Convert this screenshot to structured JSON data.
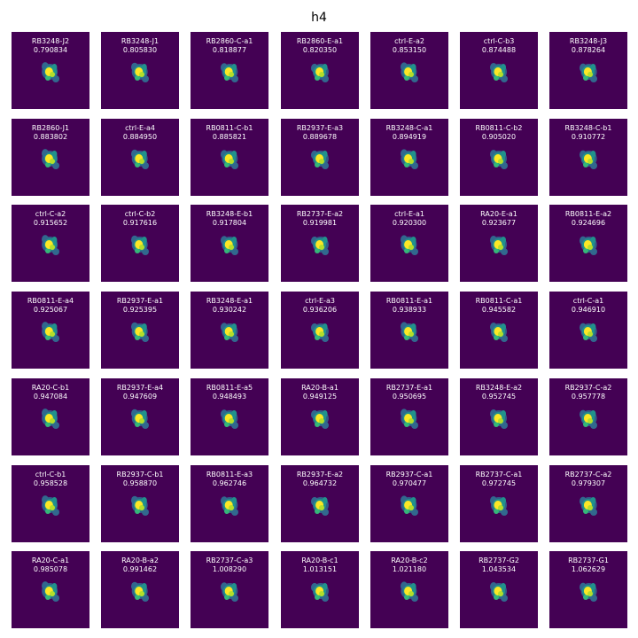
{
  "title": "h4",
  "colormap": "viridis",
  "colors": {
    "background": "#440154",
    "mid": "#21918c",
    "high": "#fde725",
    "label_text": "#ffffff"
  },
  "panels": [
    {
      "name": "RB3248-J2",
      "value": "0.790834"
    },
    {
      "name": "RB3248-J1",
      "value": "0.805830"
    },
    {
      "name": "RB2860-C-a1",
      "value": "0.818877"
    },
    {
      "name": "RB2860-E-a1",
      "value": "0.820350"
    },
    {
      "name": "ctrl-E-a2",
      "value": "0.853150"
    },
    {
      "name": "ctrl-C-b3",
      "value": "0.874488"
    },
    {
      "name": "RB3248-J3",
      "value": "0.878264"
    },
    {
      "name": "RB2860-J1",
      "value": "0.883802"
    },
    {
      "name": "ctrl-E-a4",
      "value": "0.884950"
    },
    {
      "name": "RB0811-C-b1",
      "value": "0.885821"
    },
    {
      "name": "RB2937-E-a3",
      "value": "0.889678"
    },
    {
      "name": "RB3248-C-a1",
      "value": "0.894919"
    },
    {
      "name": "RB0811-C-b2",
      "value": "0.905020"
    },
    {
      "name": "RB3248-C-b1",
      "value": "0.910772"
    },
    {
      "name": "ctrl-C-a2",
      "value": "0.915652"
    },
    {
      "name": "ctrl-C-b2",
      "value": "0.917616"
    },
    {
      "name": "RB3248-E-b1",
      "value": "0.917804"
    },
    {
      "name": "RB2737-E-a2",
      "value": "0.919981"
    },
    {
      "name": "ctrl-E-a1",
      "value": "0.920300"
    },
    {
      "name": "RA20-E-a1",
      "value": "0.923677"
    },
    {
      "name": "RB0811-E-a2",
      "value": "0.924696"
    },
    {
      "name": "RB0811-E-a4",
      "value": "0.925067"
    },
    {
      "name": "RB2937-E-a1",
      "value": "0.925395"
    },
    {
      "name": "RB3248-E-a1",
      "value": "0.930242"
    },
    {
      "name": "ctrl-E-a3",
      "value": "0.936206"
    },
    {
      "name": "RB0811-E-a1",
      "value": "0.938933"
    },
    {
      "name": "RB0811-C-a1",
      "value": "0.945582"
    },
    {
      "name": "ctrl-C-a1",
      "value": "0.946910"
    },
    {
      "name": "RA20-C-b1",
      "value": "0.947084"
    },
    {
      "name": "RB2937-E-a4",
      "value": "0.947609"
    },
    {
      "name": "RB0811-E-a5",
      "value": "0.948493"
    },
    {
      "name": "RA20-B-a1",
      "value": "0.949125"
    },
    {
      "name": "RB2737-E-a1",
      "value": "0.950695"
    },
    {
      "name": "RB3248-E-a2",
      "value": "0.952745"
    },
    {
      "name": "RB2937-C-a2",
      "value": "0.957778"
    },
    {
      "name": "ctrl-C-b1",
      "value": "0.958528"
    },
    {
      "name": "RB2937-C-b1",
      "value": "0.958870"
    },
    {
      "name": "RB0811-E-a3",
      "value": "0.962746"
    },
    {
      "name": "RB2937-E-a2",
      "value": "0.964732"
    },
    {
      "name": "RB2937-C-a1",
      "value": "0.970477"
    },
    {
      "name": "RB2737-C-a1",
      "value": "0.972745"
    },
    {
      "name": "RB2737-C-a2",
      "value": "0.979307"
    },
    {
      "name": "RA20-C-a1",
      "value": "0.985078"
    },
    {
      "name": "RA20-B-a2",
      "value": "0.991462"
    },
    {
      "name": "RB2737-C-a3",
      "value": "1.008290"
    },
    {
      "name": "RA20-B-c1",
      "value": "1.013151"
    },
    {
      "name": "RA20-B-c2",
      "value": "1.021180"
    },
    {
      "name": "RB2737-G2",
      "value": "1.043534"
    },
    {
      "name": "RB2737-G1",
      "value": "1.062629"
    }
  ]
}
